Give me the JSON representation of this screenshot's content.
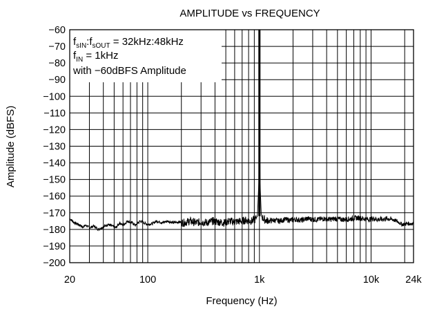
{
  "chart_data": {
    "type": "line",
    "title": "AMPLITUDE vs FREQUENCY",
    "xlabel": "Frequency (Hz)",
    "ylabel": "Amplitude (dBFS)",
    "x_scale": "log",
    "xlim": [
      20,
      24000
    ],
    "ylim": [
      -200,
      -60
    ],
    "grid": true,
    "x_tick_labels": [
      {
        "value": 20,
        "label": "20"
      },
      {
        "value": 100,
        "label": "100"
      },
      {
        "value": 1000,
        "label": "1k"
      },
      {
        "value": 10000,
        "label": "10k"
      },
      {
        "value": 24000,
        "label": "24k"
      }
    ],
    "y_ticks": [
      -60,
      -70,
      -80,
      -90,
      -100,
      -110,
      -120,
      -130,
      -140,
      -150,
      -160,
      -170,
      -180,
      -190,
      -200
    ],
    "y_tick_labels": [
      "−60",
      "−70",
      "−80",
      "−90",
      "−100",
      "−110",
      "−120",
      "−130",
      "−140",
      "−150",
      "−160",
      "−170",
      "−180",
      "−190",
      "−200"
    ],
    "annotation": {
      "line1": {
        "f": "f",
        "sub1": "sIN",
        "mid": ":f",
        "sub2": "sOUT",
        "rest": " = 32kHz:48kHz"
      },
      "line2": {
        "f": "f",
        "sub": "IN",
        "rest": " = 1kHz"
      },
      "line3": "with −60dBFS Amplitude"
    },
    "series": [
      {
        "x": [
          20,
          22,
          24,
          26,
          28,
          30,
          33,
          36,
          40,
          44,
          48,
          52,
          56,
          60,
          66,
          72,
          78,
          85,
          92,
          100,
          110,
          120,
          135,
          150,
          170,
          190,
          210,
          240,
          270,
          300,
          340,
          380,
          430,
          480,
          540,
          600,
          680,
          760,
          850,
          920,
          960,
          990,
          1000,
          1010,
          1040,
          1100,
          1200,
          1350,
          1500,
          1700,
          1900,
          2100,
          2400,
          2700,
          3000,
          3400,
          3800,
          4300,
          4800,
          5400,
          6000,
          6800,
          7600,
          8500,
          9500,
          10500,
          11500,
          12500,
          14000,
          15500,
          17000,
          19000,
          21000,
          24000
        ],
        "values": [
          -173.5,
          -176,
          -177,
          -178.5,
          -177.5,
          -179,
          -178,
          -180,
          -178.5,
          -177,
          -178,
          -179,
          -176,
          -177.5,
          -175,
          -176,
          -177.5,
          -175,
          -176,
          -177,
          -176.5,
          -175,
          -176,
          -175,
          -176,
          -175.5,
          -176,
          -175,
          -176,
          -175.5,
          -176,
          -175,
          -175.5,
          -176,
          -175,
          -175.5,
          -175,
          -174.5,
          -175,
          -174,
          -172,
          -150,
          -60,
          -150,
          -172,
          -174,
          -175,
          -174.5,
          -175,
          -174,
          -174.5,
          -174,
          -174.5,
          -173.5,
          -174,
          -174,
          -173.5,
          -174,
          -173.5,
          -174,
          -174,
          -173.5,
          -173,
          -173.5,
          -174,
          -173.5,
          -174,
          -174,
          -173.5,
          -174,
          -175,
          -177,
          -176.5,
          -176.5
        ]
      }
    ]
  }
}
